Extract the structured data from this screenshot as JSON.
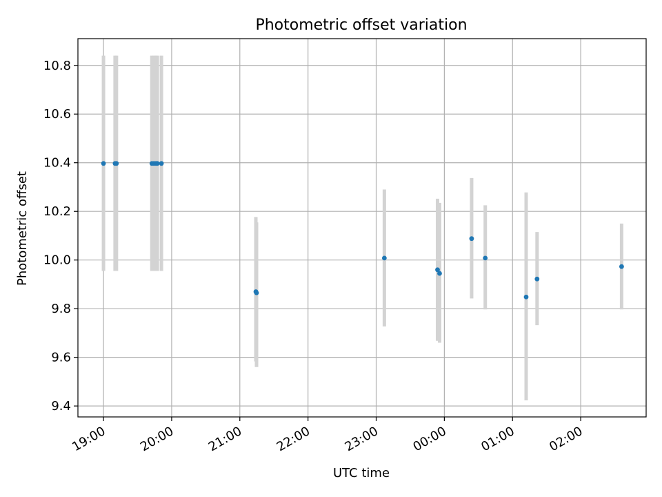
{
  "chart_data": {
    "type": "scatter",
    "title": "Photometric offset variation",
    "xlabel": "UTC time",
    "ylabel": "Photometric offset",
    "x_axis": "time (hours since 19:00 UTC; values past 24 wrap to next day)",
    "xlim": [
      -0.375,
      7.96
    ],
    "ylim": [
      9.355,
      10.91
    ],
    "x_ticks": [
      {
        "pos": 0,
        "label": "19:00"
      },
      {
        "pos": 1,
        "label": "20:00"
      },
      {
        "pos": 2,
        "label": "21:00"
      },
      {
        "pos": 3,
        "label": "22:00"
      },
      {
        "pos": 4,
        "label": "23:00"
      },
      {
        "pos": 5,
        "label": "00:00"
      },
      {
        "pos": 6,
        "label": "01:00"
      },
      {
        "pos": 7,
        "label": "02:00"
      }
    ],
    "y_ticks": [
      {
        "value": 9.4,
        "label": "9.4"
      },
      {
        "value": 9.6,
        "label": "9.6"
      },
      {
        "value": 9.8,
        "label": "9.8"
      },
      {
        "value": 10.0,
        "label": "10.0"
      },
      {
        "value": 10.2,
        "label": "10.2"
      },
      {
        "value": 10.4,
        "label": "10.4"
      },
      {
        "value": 10.6,
        "label": "10.6"
      },
      {
        "value": 10.8,
        "label": "10.8"
      }
    ],
    "grid": true,
    "point_color": "#1f77b4",
    "errorbar_color": "#d3d3d3",
    "points": [
      {
        "t": 0.0,
        "y": 10.397,
        "lo": 9.955,
        "hi": 10.84
      },
      {
        "t": 0.17,
        "y": 10.397,
        "lo": 9.955,
        "hi": 10.84
      },
      {
        "t": 0.19,
        "y": 10.397,
        "lo": 9.955,
        "hi": 10.84
      },
      {
        "t": 0.71,
        "y": 10.397,
        "lo": 9.955,
        "hi": 10.84
      },
      {
        "t": 0.74,
        "y": 10.397,
        "lo": 9.955,
        "hi": 10.84
      },
      {
        "t": 0.77,
        "y": 10.397,
        "lo": 9.955,
        "hi": 10.84
      },
      {
        "t": 0.79,
        "y": 10.397,
        "lo": 9.955,
        "hi": 10.84
      },
      {
        "t": 0.85,
        "y": 10.397,
        "lo": 9.955,
        "hi": 10.84
      },
      {
        "t": 2.235,
        "y": 9.87,
        "lo": 9.583,
        "hi": 10.177
      },
      {
        "t": 2.245,
        "y": 9.865,
        "lo": 9.56,
        "hi": 10.155
      },
      {
        "t": 4.12,
        "y": 10.008,
        "lo": 9.727,
        "hi": 10.29
      },
      {
        "t": 4.9,
        "y": 9.96,
        "lo": 9.668,
        "hi": 10.252
      },
      {
        "t": 4.93,
        "y": 9.945,
        "lo": 9.66,
        "hi": 10.235
      },
      {
        "t": 5.4,
        "y": 10.088,
        "lo": 9.842,
        "hi": 10.337
      },
      {
        "t": 5.6,
        "y": 10.008,
        "lo": 9.797,
        "hi": 10.225
      },
      {
        "t": 6.2,
        "y": 9.848,
        "lo": 9.423,
        "hi": 10.278
      },
      {
        "t": 6.36,
        "y": 9.922,
        "lo": 9.732,
        "hi": 10.115
      },
      {
        "t": 7.6,
        "y": 9.973,
        "lo": 9.797,
        "hi": 10.15
      }
    ]
  }
}
